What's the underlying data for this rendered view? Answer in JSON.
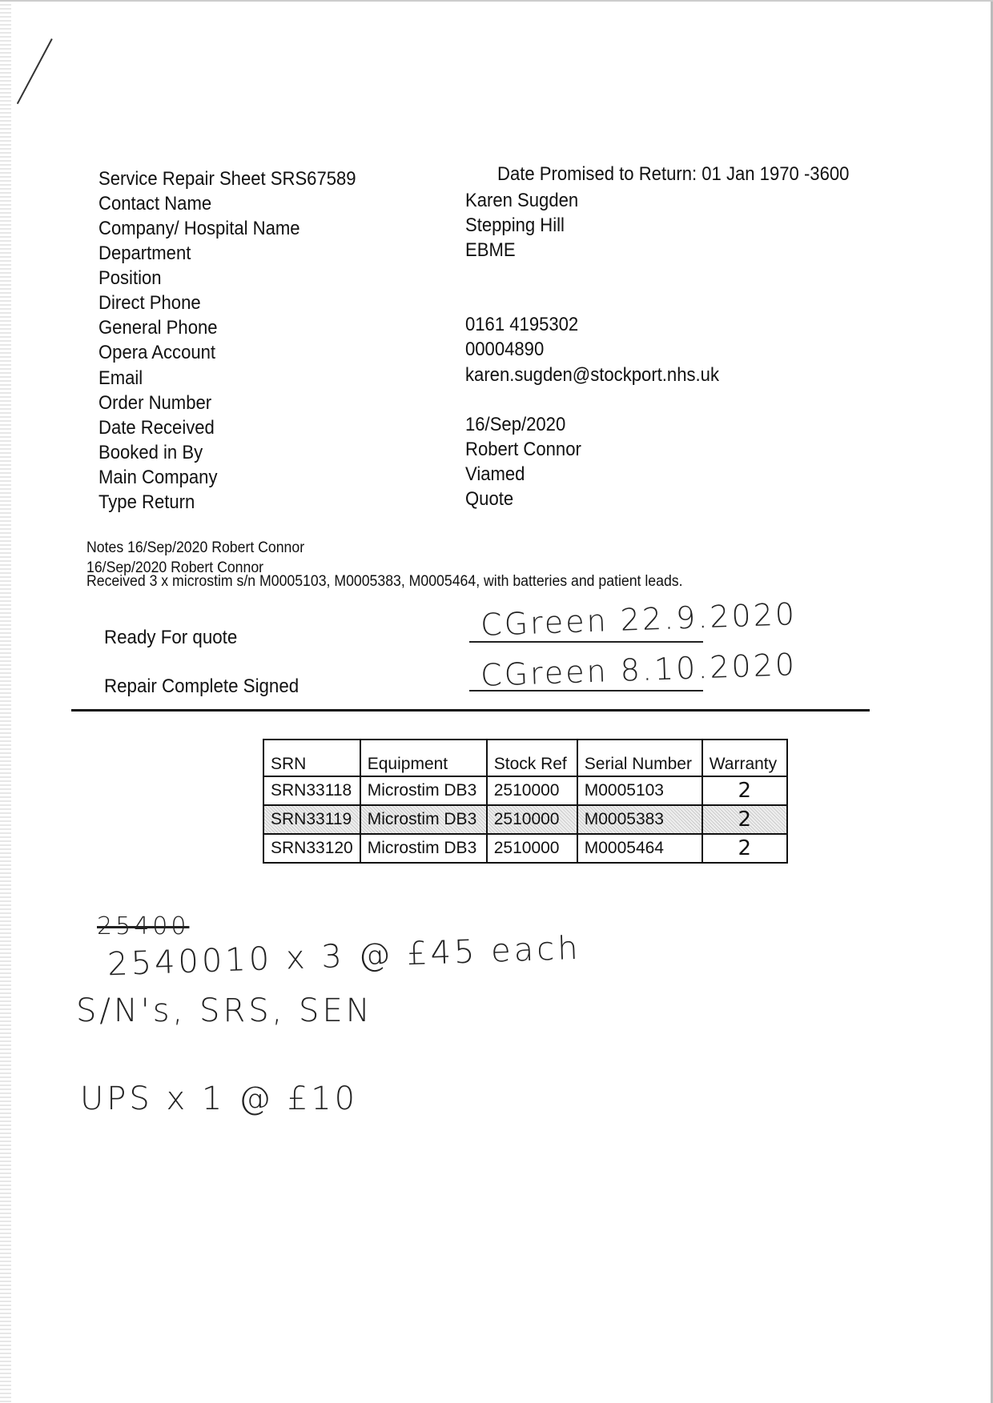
{
  "header": {
    "title": "Service Repair Sheet SRS67589",
    "date_promised": "Date Promised to Return: 01 Jan 1970 -3600"
  },
  "fields": [
    {
      "label": "Contact Name",
      "value": "Karen Sugden"
    },
    {
      "label": "Company/ Hospital Name",
      "value": "Stepping Hill"
    },
    {
      "label": "Department",
      "value": "EBME"
    },
    {
      "label": "Position",
      "value": ""
    },
    {
      "label": "Direct Phone",
      "value": ""
    },
    {
      "label": "General Phone",
      "value": "0161 4195302"
    },
    {
      "label": "Opera Account",
      "value": "00004890"
    },
    {
      "label": "Email",
      "value": "karen.sugden@stockport.nhs.uk"
    },
    {
      "label": "Order Number",
      "value": ""
    },
    {
      "label": "Date Received",
      "value": "16/Sep/2020"
    },
    {
      "label": "Booked in By",
      "value": "Robert Connor"
    },
    {
      "label": "Main Company",
      "value": "Viamed"
    },
    {
      "label": "Type Return",
      "value": "Quote"
    }
  ],
  "notes": [
    "Notes 16/Sep/2020 Robert Connor",
    "16/Sep/2020 Robert Connor",
    "Received 3 x microstim s/n M0005103, M0005383, M0005464, with batteries and patient leads."
  ],
  "signoffs": [
    {
      "label": "Ready For quote",
      "handwritten": "CGreen 22.9.2020"
    },
    {
      "label": "Repair Complete Signed",
      "handwritten": "CGreen 8.10.2020"
    }
  ],
  "table": {
    "headers": [
      "SRN",
      "Equipment",
      "Stock Ref",
      "Serial Number",
      "Warranty"
    ],
    "rows": [
      [
        "SRN33118",
        "Microstim DB3",
        "2510000",
        "M0005103",
        "2"
      ],
      [
        "SRN33119",
        "Microstim DB3",
        "2510000",
        "M0005383",
        "2"
      ],
      [
        "SRN33120",
        "Microstim DB3",
        "2510000",
        "M0005464",
        "2"
      ]
    ]
  },
  "handwritten_notes": {
    "struck": "25400",
    "line1": "2540010 x 3 @ £45 each",
    "line2": "S/N's, SRS, SEN",
    "line3": "UPS x 1 @ £10"
  }
}
